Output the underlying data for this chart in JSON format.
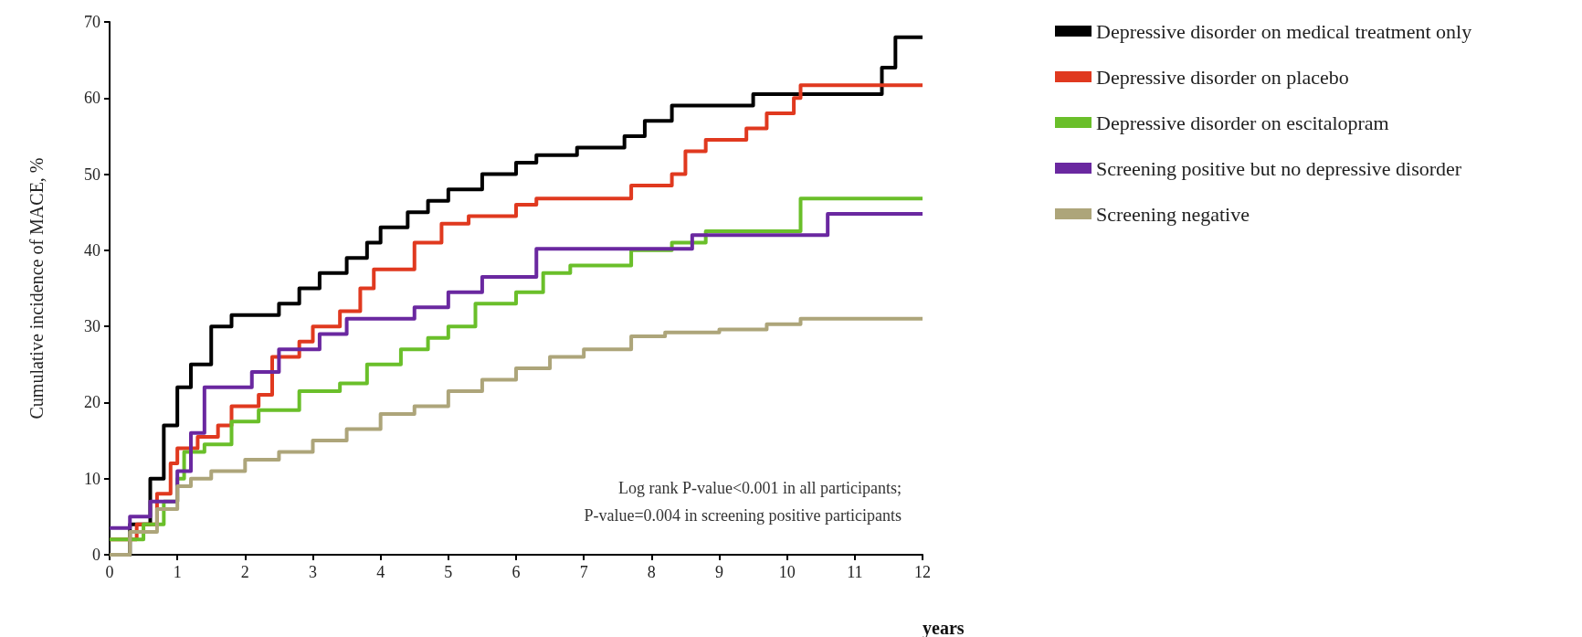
{
  "chart_data": {
    "type": "step",
    "ylabel": "Cumulative incidence of MACE, %",
    "xlabel": "years",
    "xlim": [
      0,
      12
    ],
    "xticks": [
      0,
      1,
      2,
      3,
      4,
      5,
      6,
      7,
      8,
      9,
      10,
      11,
      12
    ],
    "ylim": [
      0,
      70
    ],
    "yticks": [
      0,
      10,
      20,
      30,
      40,
      50,
      60,
      70
    ],
    "grid": false,
    "legend": "top right",
    "marker": "none",
    "line_style": "solid",
    "annotations": [
      "Log rank P-value<0.001 in all participants;",
      "P-value=0.004 in screening positive participants"
    ],
    "series": [
      {
        "name": "Depressive disorder on medical treatment only",
        "color": "#000000",
        "x": [
          0,
          0.3,
          0.6,
          0.8,
          1.0,
          1.2,
          1.5,
          1.8,
          2.3,
          2.5,
          2.8,
          3.1,
          3.5,
          3.8,
          4.0,
          4.4,
          4.7,
          5.0,
          5.5,
          6.0,
          6.3,
          6.9,
          7.6,
          7.9,
          8.3,
          9.5,
          11.4,
          11.6,
          12
        ],
        "values": [
          0,
          4,
          10,
          17,
          22,
          25,
          30,
          31.5,
          31.5,
          33,
          35,
          37,
          39,
          41,
          43,
          45,
          46.5,
          48,
          50,
          51.5,
          52.5,
          53.5,
          55,
          57,
          59,
          60.5,
          64,
          68,
          68
        ]
      },
      {
        "name": "Depressive disorder on placebo",
        "color": "#e0391f",
        "x": [
          0,
          0.4,
          0.7,
          0.9,
          1.0,
          1.3,
          1.6,
          1.8,
          2.2,
          2.4,
          2.8,
          3.0,
          3.4,
          3.7,
          3.9,
          4.5,
          4.9,
          5.3,
          6.0,
          6.3,
          7.7,
          8.3,
          8.5,
          8.8,
          9.4,
          9.7,
          10.1,
          10.2,
          12
        ],
        "values": [
          2,
          4,
          8,
          12,
          14,
          15.5,
          17,
          19.5,
          21,
          26,
          28,
          30,
          32,
          35,
          37.5,
          41,
          43.5,
          44.5,
          46,
          46.8,
          48.5,
          50,
          53,
          54.5,
          56,
          58,
          60,
          61.7,
          61.7
        ]
      },
      {
        "name": "Depressive disorder on escitalopram",
        "color": "#6abf2a",
        "x": [
          0,
          0.5,
          0.8,
          1.0,
          1.1,
          1.4,
          1.8,
          2.2,
          2.8,
          3.4,
          3.8,
          4.3,
          4.7,
          5.0,
          5.4,
          6.0,
          6.4,
          6.8,
          7.7,
          8.3,
          8.8,
          10.2,
          12
        ],
        "values": [
          2,
          4,
          7,
          10,
          13.5,
          14.5,
          17.5,
          19,
          21.5,
          22.5,
          25,
          27,
          28.5,
          30,
          33,
          34.5,
          37,
          38,
          40,
          41,
          42.5,
          46.8,
          46.8
        ]
      },
      {
        "name": "Screening positive but no depressive disorder",
        "color": "#6a28a0",
        "x": [
          0,
          0.3,
          0.6,
          1.0,
          1.2,
          1.4,
          2.1,
          2.5,
          3.1,
          3.5,
          4.5,
          5.0,
          5.5,
          6.3,
          8.6,
          10.6,
          12
        ],
        "values": [
          3.5,
          5,
          7,
          11,
          16,
          22,
          24,
          27,
          29,
          31,
          32.5,
          34.5,
          36.5,
          40.2,
          42,
          44.8,
          44.8
        ]
      },
      {
        "name": "Screening negative",
        "color": "#ada57a",
        "x": [
          0,
          0.3,
          0.7,
          1.0,
          1.2,
          1.5,
          2.0,
          2.5,
          3.0,
          3.5,
          4.0,
          4.5,
          5.0,
          5.5,
          6.0,
          6.5,
          7.0,
          7.7,
          8.2,
          9.0,
          9.7,
          10.2,
          12
        ],
        "values": [
          0,
          3,
          6,
          9,
          10,
          11,
          12.5,
          13.5,
          15,
          16.5,
          18.5,
          19.5,
          21.5,
          23,
          24.5,
          26,
          27,
          28.7,
          29.2,
          29.6,
          30.3,
          31,
          31
        ]
      }
    ]
  }
}
